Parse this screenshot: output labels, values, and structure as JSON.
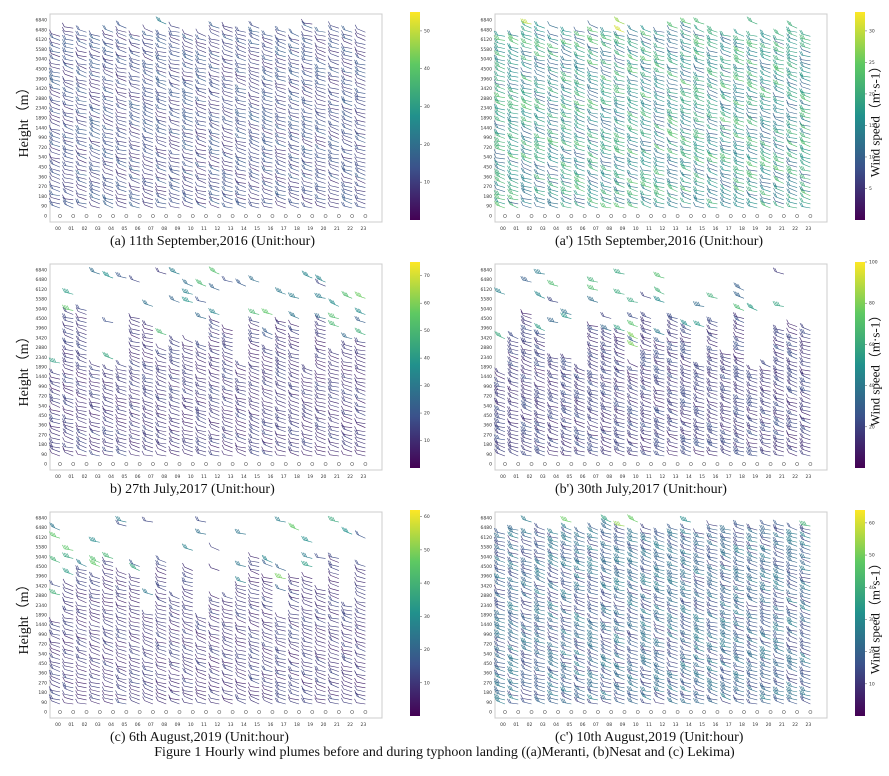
{
  "figure": {
    "caption": "Figure 1  Hourly wind plumes before and during typhoon landing ((a)Meranti, (b)Nesat and (c) Lekima)",
    "y_axis_label": "Height（m）",
    "colorbar_label": "Wind speed（m·s-1）"
  },
  "colors": {
    "colormap": [
      "#440154",
      "#3b528b",
      "#21918c",
      "#5ec962",
      "#fde725"
    ],
    "frame": "#cccccc",
    "background": "#ffffff"
  },
  "chart_data": [
    {
      "id": "a",
      "type": "wind-barb",
      "caption": "(a) 11th September,2016 (Unit:hour)",
      "x_ticks": [
        "00",
        "01",
        "02",
        "03",
        "04",
        "05",
        "06",
        "07",
        "08",
        "09",
        "10",
        "11",
        "12",
        "13",
        "14",
        "15",
        "16",
        "17",
        "18",
        "19",
        "20",
        "21",
        "22",
        "23"
      ],
      "y_ticks": [
        "0",
        "90",
        "180",
        "270",
        "360",
        "450",
        "540",
        "720",
        "990",
        "1440",
        "1890",
        "2340",
        "2880",
        "3420",
        "3960",
        "4500",
        "5040",
        "5580",
        "6120",
        "6480",
        "6840"
      ],
      "colorbar_ticks": [
        "10",
        "20",
        "30",
        "40",
        "50"
      ],
      "colorbar_range": [
        0,
        55
      ],
      "show_y_label": true,
      "show_colorbar_label": false,
      "coverage": "full",
      "mean_speed": 12
    },
    {
      "id": "a_prime",
      "type": "wind-barb",
      "caption": "(a') 15th September,2016 (Unit:hour)",
      "x_ticks": [
        "00",
        "01",
        "02",
        "03",
        "04",
        "05",
        "06",
        "07",
        "08",
        "09",
        "10",
        "11",
        "12",
        "13",
        "14",
        "15",
        "16",
        "17",
        "18",
        "19",
        "20",
        "21",
        "22",
        "23"
      ],
      "y_ticks": [
        "0",
        "90",
        "180",
        "270",
        "360",
        "450",
        "540",
        "720",
        "990",
        "1440",
        "1890",
        "2340",
        "2880",
        "3420",
        "3960",
        "4500",
        "5040",
        "5580",
        "6120",
        "6480",
        "6840"
      ],
      "colorbar_ticks": [
        "5",
        "10",
        "15",
        "20",
        "25",
        "30"
      ],
      "colorbar_range": [
        0,
        33
      ],
      "show_y_label": false,
      "show_colorbar_label": true,
      "coverage": "full",
      "mean_speed": 17
    },
    {
      "id": "b",
      "type": "wind-barb",
      "caption": "b) 27th July,2017 (Unit:hour)",
      "x_ticks": [
        "00",
        "01",
        "02",
        "03",
        "04",
        "05",
        "06",
        "07",
        "08",
        "09",
        "10",
        "11",
        "12",
        "13",
        "14",
        "15",
        "16",
        "17",
        "18",
        "19",
        "20",
        "21",
        "22",
        "23"
      ],
      "y_ticks": [
        "0",
        "90",
        "180",
        "270",
        "360",
        "450",
        "540",
        "720",
        "990",
        "1440",
        "1890",
        "2340",
        "2880",
        "3420",
        "3960",
        "4500",
        "5040",
        "5580",
        "6120",
        "6480",
        "6840"
      ],
      "colorbar_ticks": [
        "10",
        "20",
        "30",
        "40",
        "50",
        "60",
        "70"
      ],
      "colorbar_range": [
        0,
        75
      ],
      "show_y_label": true,
      "show_colorbar_label": false,
      "coverage": "partial",
      "mean_speed": 12
    },
    {
      "id": "b_prime",
      "type": "wind-barb",
      "caption": "(b') 30th July,2017 (Unit:hour)",
      "x_ticks": [
        "00",
        "01",
        "02",
        "03",
        "04",
        "05",
        "06",
        "07",
        "08",
        "09",
        "10",
        "11",
        "12",
        "13",
        "14",
        "15",
        "16",
        "17",
        "18",
        "19",
        "20",
        "21",
        "22",
        "23"
      ],
      "y_ticks": [
        "0",
        "90",
        "180",
        "270",
        "360",
        "450",
        "540",
        "720",
        "990",
        "1440",
        "1890",
        "2340",
        "2880",
        "3420",
        "3960",
        "4500",
        "5040",
        "5580",
        "6120",
        "6480",
        "6840"
      ],
      "colorbar_ticks": [
        "20",
        "40",
        "60",
        "80",
        "100"
      ],
      "colorbar_range": [
        0,
        100
      ],
      "show_y_label": false,
      "show_colorbar_label": true,
      "coverage": "partial",
      "mean_speed": 18
    },
    {
      "id": "c",
      "type": "wind-barb",
      "caption": "(c) 6th August,2019 (Unit:hour)",
      "x_ticks": [
        "00",
        "01",
        "02",
        "03",
        "04",
        "05",
        "06",
        "07",
        "08",
        "09",
        "10",
        "11",
        "12",
        "13",
        "14",
        "15",
        "16",
        "17",
        "18",
        "19",
        "20",
        "21",
        "22",
        "23"
      ],
      "y_ticks": [
        "0",
        "90",
        "180",
        "270",
        "360",
        "450",
        "540",
        "720",
        "990",
        "1440",
        "1890",
        "2340",
        "2880",
        "3420",
        "3960",
        "4500",
        "5040",
        "5580",
        "6120",
        "6480",
        "6840"
      ],
      "colorbar_ticks": [
        "10",
        "20",
        "30",
        "40",
        "50",
        "60"
      ],
      "colorbar_range": [
        0,
        62
      ],
      "show_y_label": true,
      "show_colorbar_label": false,
      "coverage": "partial",
      "mean_speed": 10
    },
    {
      "id": "c_prime",
      "type": "wind-barb",
      "caption": "(c') 10th August,2019 (Unit:hour)",
      "x_ticks": [
        "00",
        "01",
        "02",
        "03",
        "04",
        "05",
        "06",
        "07",
        "08",
        "09",
        "10",
        "11",
        "12",
        "13",
        "14",
        "15",
        "16",
        "17",
        "18",
        "19",
        "20",
        "21",
        "22",
        "23"
      ],
      "y_ticks": [
        "0",
        "90",
        "180",
        "270",
        "360",
        "450",
        "540",
        "720",
        "990",
        "1440",
        "1890",
        "2340",
        "2880",
        "3420",
        "3960",
        "4500",
        "5040",
        "5580",
        "6120",
        "6480",
        "6840"
      ],
      "colorbar_ticks": [
        "10",
        "20",
        "30",
        "40",
        "50",
        "60"
      ],
      "colorbar_range": [
        0,
        64
      ],
      "show_y_label": false,
      "show_colorbar_label": true,
      "coverage": "full",
      "mean_speed": 20
    }
  ]
}
